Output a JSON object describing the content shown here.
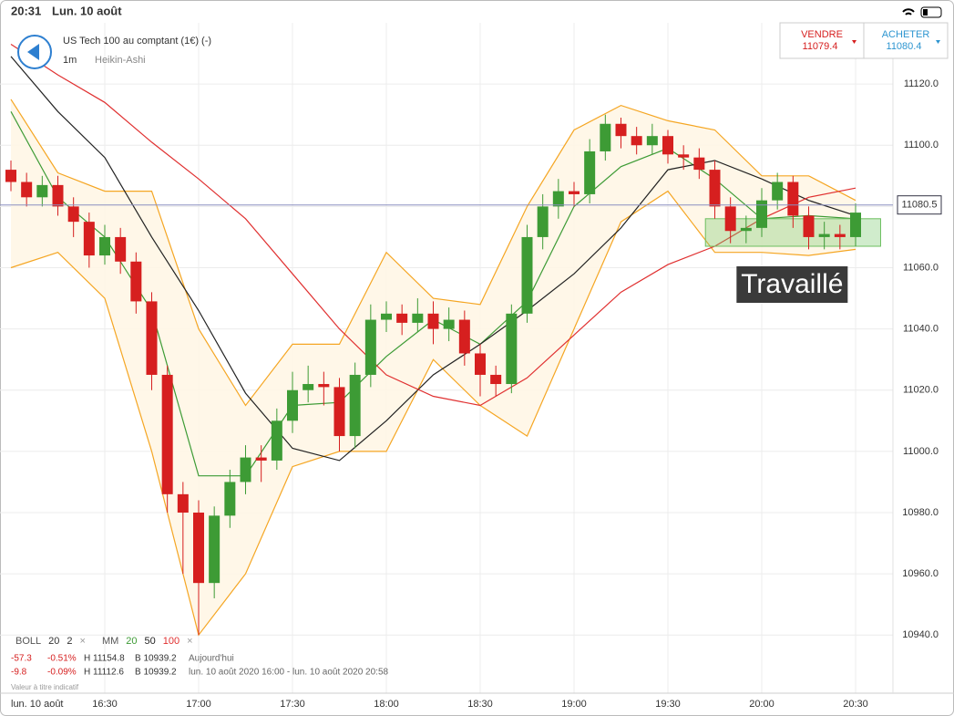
{
  "status_bar": {
    "time": "20:31",
    "date": "Lun. 10 août"
  },
  "header": {
    "instrument": "US Tech 100 au comptant (1€) (-)",
    "interval": "1m",
    "chart_style": "Heikin-Ashi"
  },
  "quotes": {
    "sell_label": "VENDRE",
    "sell": 11079.4,
    "buy_label": "ACHETER",
    "buy": 11080.4
  },
  "chart_data": {
    "type": "candlestick",
    "x": [
      "16:00",
      "16:05",
      "16:10",
      "16:15",
      "16:20",
      "16:25",
      "16:30",
      "16:35",
      "16:40",
      "16:45",
      "16:50",
      "16:55",
      "17:00",
      "17:05",
      "17:10",
      "17:15",
      "17:20",
      "17:25",
      "17:30",
      "17:35",
      "17:40",
      "17:45",
      "17:50",
      "17:55",
      "18:00",
      "18:05",
      "18:10",
      "18:15",
      "18:20",
      "18:25",
      "18:30",
      "18:35",
      "18:40",
      "18:45",
      "18:50",
      "18:55",
      "19:00",
      "19:05",
      "19:10",
      "19:15",
      "19:20",
      "19:25",
      "19:30",
      "19:35",
      "19:40",
      "19:45",
      "19:50",
      "19:55",
      "20:00",
      "20:05",
      "20:10",
      "20:15",
      "20:20",
      "20:25",
      "20:30"
    ],
    "open": [
      11092,
      11088,
      11083,
      11087,
      11080,
      11075,
      11064,
      11070,
      11062,
      11049,
      11025,
      10986,
      10980,
      10957,
      10979,
      10990,
      10998,
      10997,
      11010,
      11020,
      11022,
      11021,
      11005,
      11025,
      11043,
      11045,
      11042,
      11045,
      11040,
      11043,
      11032,
      11025,
      11022,
      11045,
      11070,
      11080,
      11085,
      11084,
      11098,
      11107,
      11103,
      11100,
      11103,
      11097,
      11096,
      11092,
      11080,
      11072,
      11073,
      11082,
      11088,
      11077,
      11070,
      11071,
      11070
    ],
    "high": [
      11095,
      11091,
      11090,
      11090,
      11083,
      11078,
      11074,
      11073,
      11065,
      11052,
      11028,
      10990,
      10984,
      10982,
      10994,
      11002,
      11002,
      11014,
      11026,
      11028,
      11026,
      11024,
      11029,
      11048,
      11049,
      11048,
      11050,
      11049,
      11047,
      11046,
      11035,
      11028,
      11048,
      11074,
      11084,
      11089,
      11088,
      11102,
      11110,
      11109,
      11106,
      11107,
      11105,
      11100,
      11099,
      11095,
      11083,
      11077,
      11086,
      11091,
      11090,
      11080,
      11075,
      11074,
      11081
    ],
    "low": [
      11085,
      11080,
      11080,
      11077,
      11070,
      11060,
      11061,
      11058,
      11045,
      11020,
      10980,
      10960,
      10940,
      10952,
      10975,
      10986,
      10990,
      10994,
      11006,
      11016,
      11015,
      11000,
      11001,
      11021,
      11039,
      11038,
      11039,
      11035,
      11036,
      11028,
      11018,
      11018,
      11019,
      11042,
      11066,
      11076,
      11080,
      11081,
      11095,
      11099,
      11097,
      11097,
      11094,
      11092,
      11089,
      11076,
      11068,
      11068,
      11070,
      11079,
      11073,
      11066,
      11066,
      11066,
      11067
    ],
    "close": [
      11088,
      11083,
      11087,
      11080,
      11075,
      11064,
      11070,
      11062,
      11049,
      11025,
      10986,
      10980,
      10957,
      10979,
      10990,
      10998,
      10997,
      11010,
      11020,
      11022,
      11021,
      11005,
      11025,
      11043,
      11045,
      11042,
      11045,
      11040,
      11043,
      11032,
      11025,
      11022,
      11045,
      11070,
      11080,
      11085,
      11084,
      11098,
      11107,
      11103,
      11100,
      11103,
      11097,
      11096,
      11092,
      11080,
      11072,
      11073,
      11082,
      11088,
      11077,
      11070,
      11071,
      11070,
      11078
    ],
    "up_color": "#3d9b35",
    "down_color": "#d61f1f",
    "ylim": [
      10921,
      11140
    ],
    "yticks": [
      {
        "value": 10940,
        "label": "10940.0"
      },
      {
        "value": 10960,
        "label": "10960.0"
      },
      {
        "value": 10980,
        "label": "10980.0"
      },
      {
        "value": 11000,
        "label": "11000.0"
      },
      {
        "value": 11020,
        "label": "11020.0"
      },
      {
        "value": 11040,
        "label": "11040.0"
      },
      {
        "value": 11060,
        "label": "11060.0"
      },
      {
        "value": 11080,
        "label": "11080.0"
      },
      {
        "value": 11100,
        "label": "11100.0"
      },
      {
        "value": 11120,
        "label": "11120.0"
      }
    ],
    "xticks": [
      "16:30",
      "17:00",
      "17:30",
      "18:00",
      "18:30",
      "19:00",
      "19:30",
      "20:00",
      "20:30"
    ],
    "x_axis_date": "lun. 10 août",
    "grid": true,
    "current_price": 11080.5,
    "indicators": {
      "x": [
        "16:00",
        "16:15",
        "16:30",
        "16:45",
        "17:00",
        "17:15",
        "17:30",
        "17:45",
        "18:00",
        "18:15",
        "18:30",
        "18:45",
        "19:00",
        "19:15",
        "19:30",
        "19:45",
        "20:00",
        "20:15",
        "20:30"
      ],
      "boll": {
        "label": "BOLL",
        "period": 20,
        "deviation": 2,
        "color": "#f5a623",
        "upper": [
          11115,
          11091,
          11085,
          11085,
          11040,
          11015,
          11035,
          11035,
          11065,
          11050,
          11048,
          11080,
          11105,
          11113,
          11108,
          11105,
          11090,
          11090,
          11082
        ],
        "lower": [
          11060,
          11065,
          11050,
          11000,
          10940,
          10960,
          10995,
          11000,
          11000,
          11030,
          11015,
          11005,
          11040,
          11075,
          11085,
          11065,
          11065,
          11064,
          11066
        ]
      },
      "mm": {
        "label": "MM",
        "series": [
          {
            "name": "20",
            "color": "#3d9b35",
            "values": [
              11111,
              11083,
              11070,
              11046,
              10992,
              10992,
              11015,
              11016,
              11031,
              11043,
              11035,
              11049,
              11080,
              11093,
              11099,
              11089,
              11076,
              11077,
              11076
            ]
          },
          {
            "name": "50",
            "color": "#222222",
            "values": [
              11129,
              11111,
              11096,
              11070,
              11046,
              11019,
              11001,
              10997,
              11010,
              11025,
              11035,
              11046,
              11058,
              11073,
              11092,
              11095,
              11089,
              11082,
              11077
            ]
          },
          {
            "name": "100",
            "color": "#e03030",
            "values": [
              11133,
              11123,
              11114,
              11101,
              11089,
              11076,
              11058,
              11040,
              11025,
              11018,
              11015,
              11024,
              11038,
              11052,
              11061,
              11067,
              11076,
              11083,
              11086
            ]
          }
        ]
      },
      "close_symbol": "×"
    },
    "annotation": {
      "text": "Travaillé",
      "x": [
        "19:42",
        "20:38"
      ],
      "y": [
        11067,
        11076
      ]
    }
  },
  "stats": [
    [
      "-57.3",
      "-0.51%",
      "H 11154.8",
      "B 10939.2",
      "Aujourd'hui"
    ],
    [
      "-9.8",
      "-0.09%",
      "H 11112.6",
      "B 10939.2",
      "lun. 10 août 2020 16:00 - lun. 10 août 2020 20:58"
    ]
  ],
  "disclaimer": "Valeur à titre indicatif"
}
